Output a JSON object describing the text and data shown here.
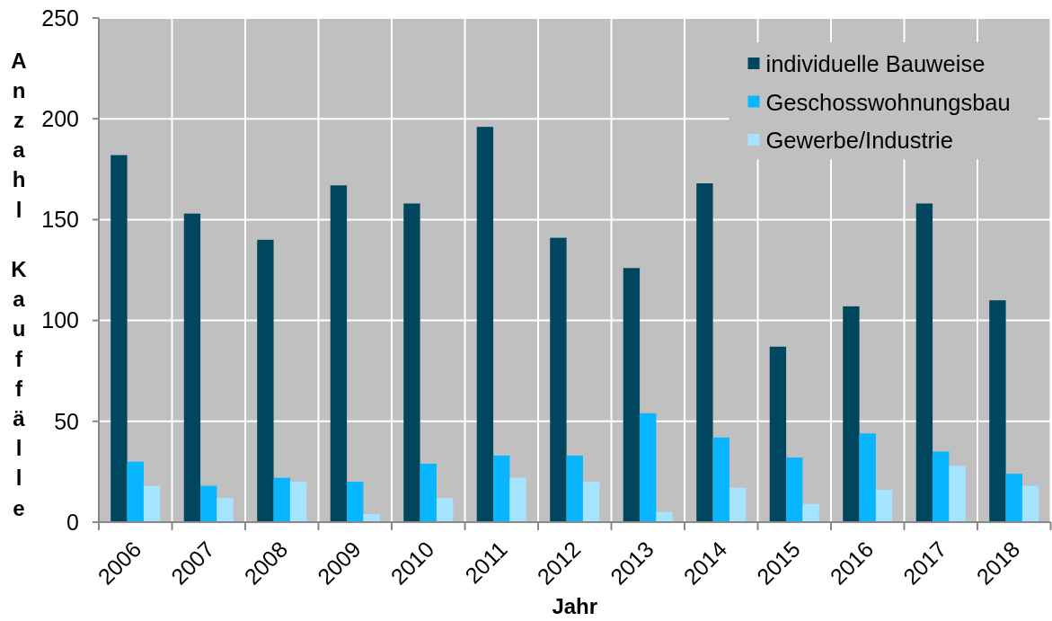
{
  "chart_data": {
    "type": "bar",
    "xlabel": "Jahr",
    "ylabel": "Anzahl Kauffälle",
    "categories": [
      "2006",
      "2007",
      "2008",
      "2009",
      "2010",
      "2011",
      "2012",
      "2013",
      "2014",
      "2015",
      "2016",
      "2017",
      "2018"
    ],
    "series": [
      {
        "name": "individuelle Bauweise",
        "color": "#00465f",
        "values": [
          182,
          153,
          140,
          167,
          158,
          196,
          141,
          126,
          168,
          87,
          107,
          158,
          110
        ]
      },
      {
        "name": "Geschosswohnungsbau",
        "color": "#07b6fe",
        "values": [
          30,
          18,
          22,
          20,
          29,
          33,
          33,
          54,
          42,
          32,
          44,
          35,
          24
        ]
      },
      {
        "name": "Gewerbe/Industrie",
        "color": "#a6e3ff",
        "values": [
          18,
          12,
          20,
          4,
          12,
          22,
          20,
          5,
          17,
          9,
          16,
          28,
          18
        ]
      }
    ],
    "ylim": [
      0,
      250
    ],
    "yticks": [
      0,
      50,
      100,
      150,
      200,
      250
    ],
    "grid": true,
    "legend": "top right"
  }
}
